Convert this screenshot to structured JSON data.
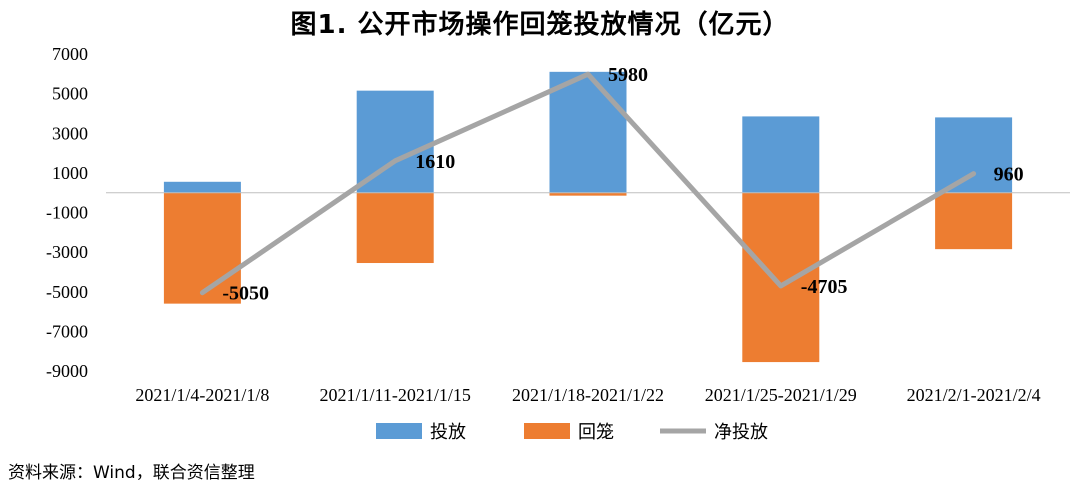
{
  "title": "图1.    公开市场操作回笼投放情况（亿元）",
  "source": "资料来源：Wind，联合资信整理",
  "chart_data": {
    "type": "bar",
    "categories": [
      "2021/1/4-2021/1/8",
      "2021/1/11-2021/1/15",
      "2021/1/18-2021/1/22",
      "2021/1/25-2021/1/29",
      "2021/2/1-2021/2/4"
    ],
    "series": [
      {
        "name": "投放",
        "type": "bar",
        "color": "#5B9BD5",
        "values": [
          550,
          5150,
          6100,
          3850,
          3800
        ]
      },
      {
        "name": "回笼",
        "type": "bar",
        "color": "#ED7D31",
        "values": [
          -5600,
          -3550,
          -150,
          -8550,
          -2850
        ]
      },
      {
        "name": "净投放",
        "type": "line",
        "color": "#A5A5A5",
        "values": [
          -5050,
          1610,
          5980,
          -4705,
          960
        ]
      }
    ],
    "data_labels": [
      "-5050",
      "1610",
      "5980",
      "-4705",
      "960"
    ],
    "yticks": [
      "7000",
      "5000",
      "3000",
      "1000",
      "-1000",
      "-3000",
      "-5000",
      "-7000",
      "-9000"
    ],
    "ylim": [
      -9000,
      7000
    ],
    "legend_position": "bottom",
    "grid": false
  }
}
